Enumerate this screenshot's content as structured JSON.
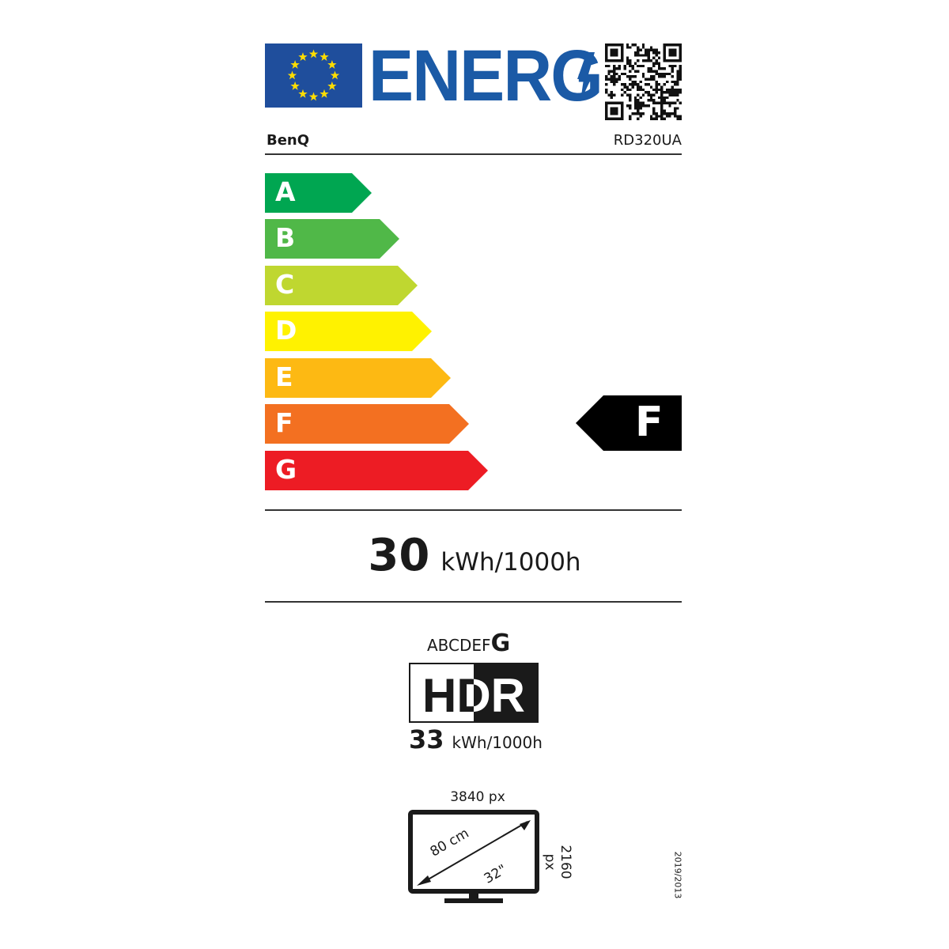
{
  "header": {
    "logo_text": "ENERG",
    "brand": "BenQ",
    "model": "RD320UA"
  },
  "scale": {
    "classes": [
      {
        "letter": "A",
        "color": "#00a651"
      },
      {
        "letter": "B",
        "color": "#50b848"
      },
      {
        "letter": "C",
        "color": "#bfd730"
      },
      {
        "letter": "D",
        "color": "#fff200"
      },
      {
        "letter": "E",
        "color": "#fdb913"
      },
      {
        "letter": "F",
        "color": "#f37021"
      },
      {
        "letter": "G",
        "color": "#ed1c24"
      }
    ],
    "rating": "F"
  },
  "sdr_consumption": {
    "value": "30",
    "unit": "kWh/1000h"
  },
  "hdr": {
    "scale_prefix": "ABCDEF",
    "class": "G",
    "logo": "HDR",
    "value": "33",
    "unit": "kWh/1000h"
  },
  "screen": {
    "h_res": "3840 px",
    "v_res": "2160 px",
    "diag_cm": "80 cm",
    "diag_in": "32\""
  },
  "regulation": "2019/2013",
  "colors": {
    "eu_blue": "#1f4e9c",
    "energy_blue": "#1b5aa6",
    "star_yellow": "#ffdd00"
  }
}
